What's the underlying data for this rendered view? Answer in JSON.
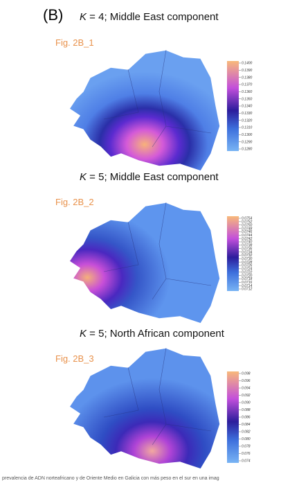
{
  "panel": "(B)",
  "maps": [
    {
      "title": {
        "variable": "K",
        "text": " = 4; Middle East component"
      },
      "label": "Fig. 2B_1",
      "scale": [
        "0.1400",
        "0.1390",
        "0.1380",
        "0.1370",
        "0.1360",
        "0.1350",
        "0.1340",
        "0.1330",
        "0.1320",
        "0.1310",
        "0.1300",
        "0.1290",
        "0.1280"
      ]
    },
    {
      "title": {
        "variable": "K",
        "text": " = 5; Middle East component"
      },
      "label": "Fig. 2B_2",
      "scale": [
        "0.0754",
        "0.0752",
        "0.0750",
        "0.0748",
        "0.0746",
        "0.0744",
        "0.0742",
        "0.0740",
        "0.0738",
        "0.0736",
        "0.0734",
        "0.0732",
        "0.0730",
        "0.0728",
        "0.0726",
        "0.0724",
        "0.0722",
        "0.0720",
        "0.0718",
        "0.0716",
        "0.0714",
        "0.0712"
      ]
    },
    {
      "title": {
        "variable": "K",
        "text": " = 5; North African component"
      },
      "label": "Fig. 2B_3",
      "scale": [
        "0.098",
        "0.096",
        "0.094",
        "0.092",
        "0.090",
        "0.088",
        "0.086",
        "0.084",
        "0.082",
        "0.080",
        "0.078",
        "0.076",
        "0.074"
      ]
    }
  ],
  "caption": "prevalencia de ADN norteafricano y de Oriente Medio en Galicia con más peso en el sur en una imag"
}
